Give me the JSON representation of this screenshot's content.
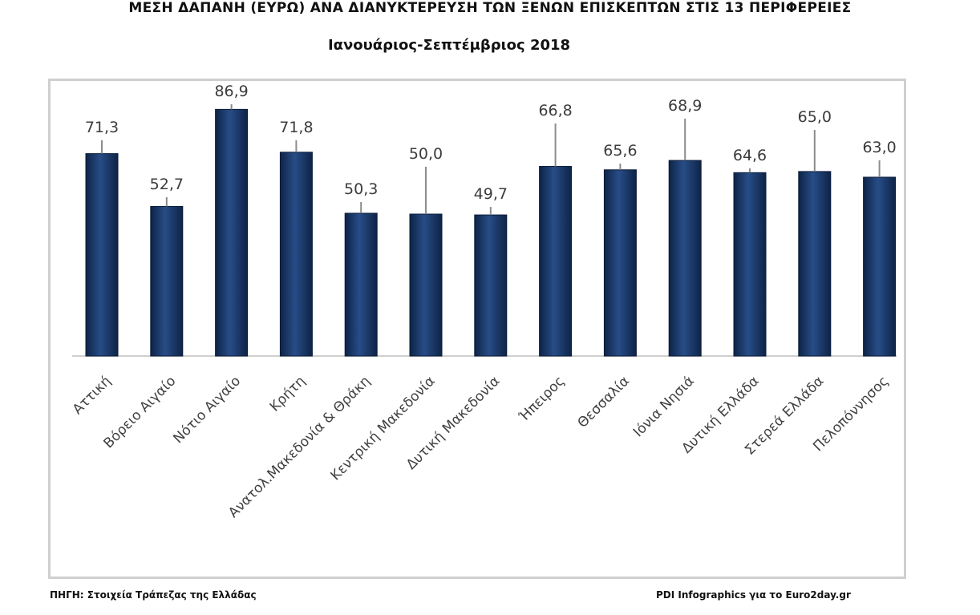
{
  "header": {
    "title": "ΜΕΣΗ ΔΑΠΑΝΗ (ΕΥΡΩ) ΑΝΑ ΔΙΑΝΥΚΤΕΡΕΥΣΗ ΤΩΝ ΞΕΝΩΝ ΕΠΙΣΚΕΠΤΩΝ ΣΤΙΣ 13 ΠΕΡΙΦΕΡΕΙΕΣ",
    "subtitle": "Ιανουάριος-Σεπτέμβριος 2018"
  },
  "footer": {
    "source": "ΠΗΓΗ: Στοιχεία Τράπεζας της Ελλάδας",
    "credit": "PDI Infographics για το Euro2day.gr"
  },
  "chart_data": {
    "type": "bar",
    "title": "ΜΕΣΗ ΔΑΠΑΝΗ (ΕΥΡΩ) ΑΝΑ ΔΙΑΝΥΚΤΕΡΕΥΣΗ ΤΩΝ ΞΕΝΩΝ ΕΠΙΣΚΕΠΤΩΝ ΣΤΙΣ 13 ΠΕΡΙΦΕΡΕΙΕΣ",
    "subtitle": "Ιανουάριος-Σεπτέμβριος 2018",
    "categories": [
      "Αττική",
      "Βόρειο Αιγαίο",
      "Νότιο Αιγαίο",
      "Κρήτη",
      "Ανατολ.Μακεδονία & Θράκη",
      "Κεντρική Μακεδονία",
      "Δυτική Μακεδονία",
      "Ήπειρος",
      "Θεσσαλία",
      "Ιόνια Νησιά",
      "Δυτική Ελλάδα",
      "Στερεά Ελλάδα",
      "Πελοπόννησος"
    ],
    "values": [
      71.3,
      52.7,
      86.9,
      71.8,
      50.3,
      50.0,
      49.7,
      66.8,
      65.6,
      68.9,
      64.6,
      65.0,
      63.0
    ],
    "data_labels": [
      "71,3",
      "52,7",
      "86,9",
      "71,8",
      "50,3",
      "50,0",
      "49,7",
      "66,8",
      "65,6",
      "68,9",
      "64,6",
      "65,0",
      "63,0"
    ],
    "ylim": [
      0,
      100
    ],
    "grid": false,
    "legend": "none",
    "bar_color": "#1b3a6e",
    "xlabel": "",
    "ylabel": ""
  }
}
